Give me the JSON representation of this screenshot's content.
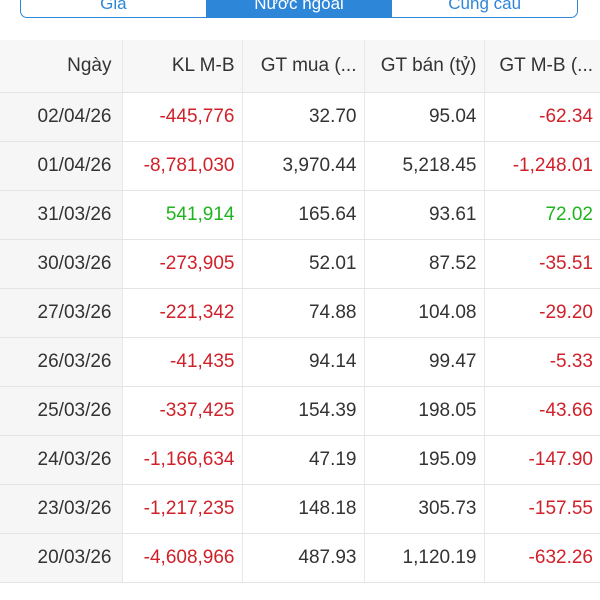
{
  "tabs": [
    {
      "label": "Giá",
      "active": false
    },
    {
      "label": "Nước ngoài",
      "active": true
    },
    {
      "label": "Cung cầu",
      "active": false
    }
  ],
  "table": {
    "headers": [
      "Ngày",
      "KL M-B",
      "GT mua (...",
      "GT bán (tỷ)",
      "GT M-B (..."
    ],
    "rows": [
      {
        "date": "02/04/26",
        "kl": "-445,776",
        "mua": "32.70",
        "ban": "95.04",
        "gt": "-62.34",
        "sign": "neg"
      },
      {
        "date": "01/04/26",
        "kl": "-8,781,030",
        "mua": "3,970.44",
        "ban": "5,218.45",
        "gt": "-1,248.01",
        "sign": "neg"
      },
      {
        "date": "31/03/26",
        "kl": "541,914",
        "mua": "165.64",
        "ban": "93.61",
        "gt": "72.02",
        "sign": "pos"
      },
      {
        "date": "30/03/26",
        "kl": "-273,905",
        "mua": "52.01",
        "ban": "87.52",
        "gt": "-35.51",
        "sign": "neg"
      },
      {
        "date": "27/03/26",
        "kl": "-221,342",
        "mua": "74.88",
        "ban": "104.08",
        "gt": "-29.20",
        "sign": "neg"
      },
      {
        "date": "26/03/26",
        "kl": "-41,435",
        "mua": "94.14",
        "ban": "99.47",
        "gt": "-5.33",
        "sign": "neg"
      },
      {
        "date": "25/03/26",
        "kl": "-337,425",
        "mua": "154.39",
        "ban": "198.05",
        "gt": "-43.66",
        "sign": "neg"
      },
      {
        "date": "24/03/26",
        "kl": "-1,166,634",
        "mua": "47.19",
        "ban": "195.09",
        "gt": "-147.90",
        "sign": "neg"
      },
      {
        "date": "23/03/26",
        "kl": "-1,217,235",
        "mua": "148.18",
        "ban": "305.73",
        "gt": "-157.55",
        "sign": "neg"
      },
      {
        "date": "20/03/26",
        "kl": "-4,608,966",
        "mua": "487.93",
        "ban": "1,120.19",
        "gt": "-632.26",
        "sign": "neg"
      }
    ]
  },
  "colors": {
    "accent": "#2e86d9",
    "negative": "#d0212a",
    "positive": "#1fb31f"
  }
}
